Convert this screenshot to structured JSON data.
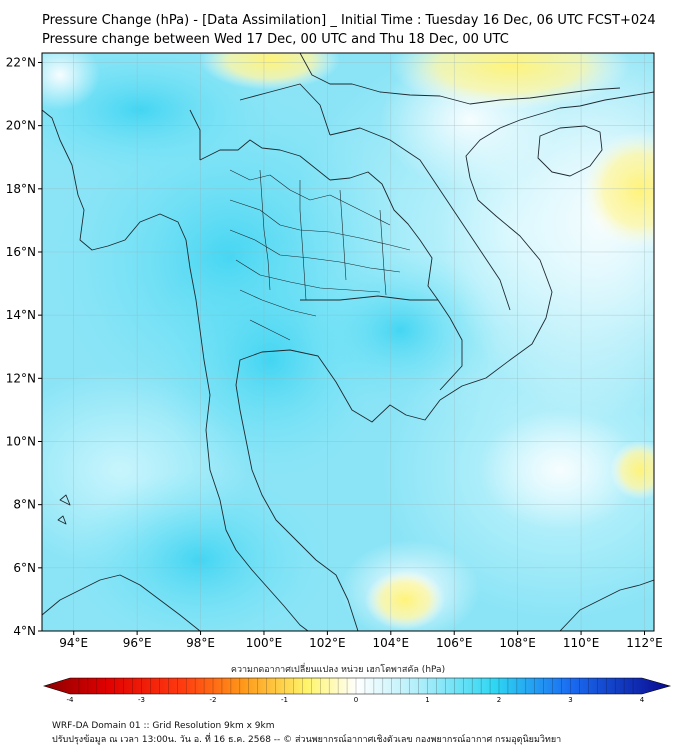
{
  "header": {
    "title": "Pressure Change (hPa) - [Data Assimilation] _ Initial Time : Tuesday 16 Dec, 06 UTC FCST+024",
    "subtitle": "Pressure change between Wed 17 Dec, 00 UTC and Thu 18 Dec, 00 UTC"
  },
  "map": {
    "lat_ticks": [
      "22°N",
      "20°N",
      "18°N",
      "16°N",
      "14°N",
      "12°N",
      "10°N",
      "8°N",
      "6°N",
      "4°N"
    ],
    "lon_ticks": [
      "94°E",
      "96°E",
      "98°E",
      "100°E",
      "102°E",
      "104°E",
      "106°E",
      "108°E",
      "110°E",
      "112°E"
    ],
    "lat_range": [
      4,
      22.3
    ],
    "lon_range": [
      93,
      112.3
    ]
  },
  "colorbar": {
    "caption": "ความกดอากาศเปลี่ยนแปลง หน่วย เฮกโตพาสคัล (hPa)",
    "tick_labels": [
      "-4",
      "-3",
      "-2",
      "-1",
      "0",
      "1",
      "2",
      "3",
      "4"
    ],
    "range": [
      -4,
      4
    ],
    "colors": {
      "dark_red": "#8b0000",
      "red": "#ff2a10",
      "orange": "#ff9a1a",
      "yellow": "#fff56a",
      "white": "#ffffff",
      "cyan": "#2fd6f2",
      "blue": "#1a6cf2",
      "dark_blue": "#0a0a90"
    }
  },
  "footer": {
    "line1": "WRF-DA Domain 01 :: Grid Resolution 9km x 9km",
    "line2": "ปรับปรุงข้อมูล ณ เวลา 13:00น. วัน อ. ที่ 16 ธ.ค. 2568 -- © ส่วนพยากรณ์อากาศเชิงตัวเลข กองพยากรณ์อากาศ กรมอุตุนิยมวิทยา"
  }
}
